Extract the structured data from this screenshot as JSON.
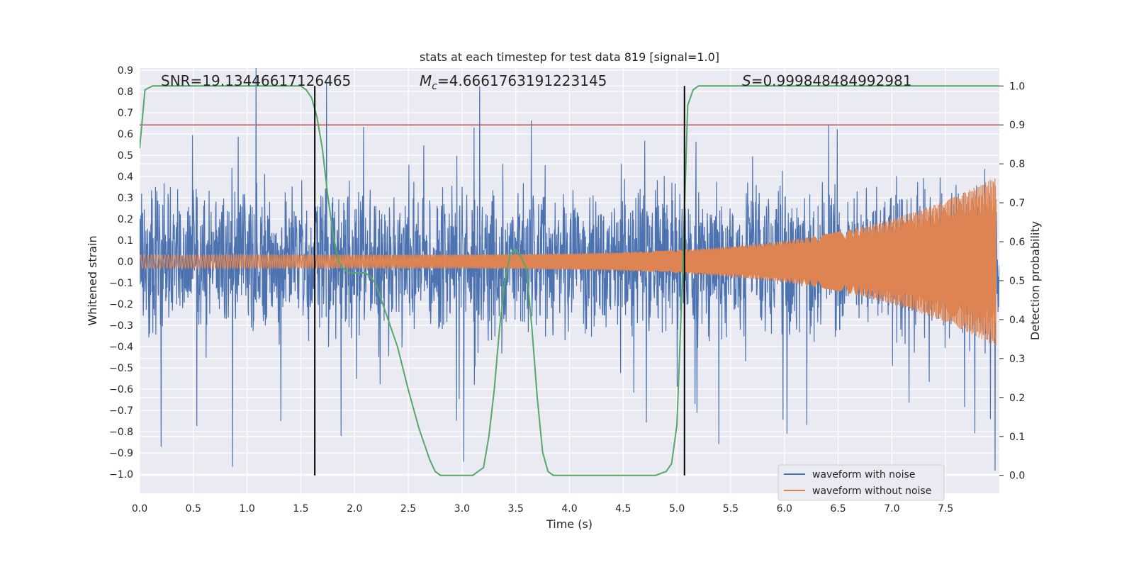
{
  "chart_data": {
    "type": "line",
    "title": "stats at each timestep for test data 819 [signal=1.0]",
    "xlabel": "Time (s)",
    "ylabel": "Whitened strain",
    "y2label": "Detection probability",
    "xlim": [
      0.0,
      8.0
    ],
    "ylim": [
      -1.09,
      0.91
    ],
    "y2lim": [
      -0.046,
      1.046
    ],
    "xticks": [
      "0.0",
      "0.5",
      "1.0",
      "1.5",
      "2.0",
      "2.5",
      "3.0",
      "3.5",
      "4.0",
      "4.5",
      "5.0",
      "5.5",
      "6.0",
      "6.5",
      "7.0",
      "7.5"
    ],
    "yticks": [
      "0.9",
      "0.8",
      "0.7",
      "0.6",
      "0.5",
      "0.4",
      "0.3",
      "0.2",
      "0.1",
      "0.0",
      "−0.1",
      "−0.2",
      "−0.3",
      "−0.4",
      "−0.5",
      "−0.6",
      "−0.7",
      "−0.8",
      "−0.9",
      "−1.0"
    ],
    "y2ticks": [
      "1.0",
      "0.9",
      "0.8",
      "0.7",
      "0.6",
      "0.5",
      "0.4",
      "0.3",
      "0.2",
      "0.1",
      "0.0"
    ],
    "grid": true,
    "legend_position": "lower-right",
    "annotations": {
      "snr": "SNR=19.13446617126465",
      "mc_symbol": "M",
      "mc_sub": "c",
      "mc_value": "=4.6661763191223145",
      "s_symbol": "S",
      "s_value": "=0.999848484992981"
    },
    "threshold_y": 0.9,
    "vlines_x": [
      1.63,
      5.07
    ],
    "series": [
      {
        "name": "waveform with noise",
        "color": "#4c72b0",
        "kind": "noise",
        "amplitude": 0.22
      },
      {
        "name": "waveform without noise",
        "color": "#dd8452",
        "kind": "chirp",
        "amplitude_start": 0.032,
        "amplitude_end": 0.4
      },
      {
        "name": "",
        "color": "#55a868",
        "axis": "right",
        "x": [
          0.0,
          0.05,
          0.12,
          0.2,
          0.4,
          0.8,
          1.2,
          1.5,
          1.55,
          1.6,
          1.65,
          1.7,
          1.75,
          1.8,
          1.85,
          1.9,
          1.95,
          2.0,
          2.1,
          2.15,
          2.2,
          2.25,
          2.3,
          2.4,
          2.5,
          2.6,
          2.7,
          2.75,
          2.8,
          2.9,
          3.0,
          3.1,
          3.15,
          3.2,
          3.25,
          3.3,
          3.35,
          3.4,
          3.45,
          3.5,
          3.55,
          3.6,
          3.65,
          3.7,
          3.75,
          3.8,
          3.85,
          3.9,
          4.0,
          4.5,
          4.8,
          4.9,
          4.95,
          5.0,
          5.05,
          5.1,
          5.15,
          5.2,
          5.3,
          5.5,
          6.0,
          7.0,
          8.0
        ],
        "y": [
          0.84,
          0.99,
          1.0,
          1.0,
          1.0,
          1.0,
          1.0,
          1.0,
          0.99,
          0.97,
          0.92,
          0.84,
          0.72,
          0.62,
          0.55,
          0.53,
          0.52,
          0.52,
          0.52,
          0.51,
          0.49,
          0.45,
          0.41,
          0.33,
          0.22,
          0.12,
          0.04,
          0.01,
          0.0,
          0.0,
          0.0,
          0.0,
          0.01,
          0.02,
          0.1,
          0.22,
          0.38,
          0.5,
          0.57,
          0.58,
          0.56,
          0.53,
          0.38,
          0.2,
          0.06,
          0.01,
          0.0,
          0.0,
          0.0,
          0.0,
          0.0,
          0.01,
          0.03,
          0.13,
          0.5,
          0.95,
          0.99,
          1.0,
          1.0,
          1.0,
          1.0,
          1.0,
          1.0
        ]
      }
    ],
    "threshold_color": "#c44e52",
    "vline_color": "#000000"
  }
}
